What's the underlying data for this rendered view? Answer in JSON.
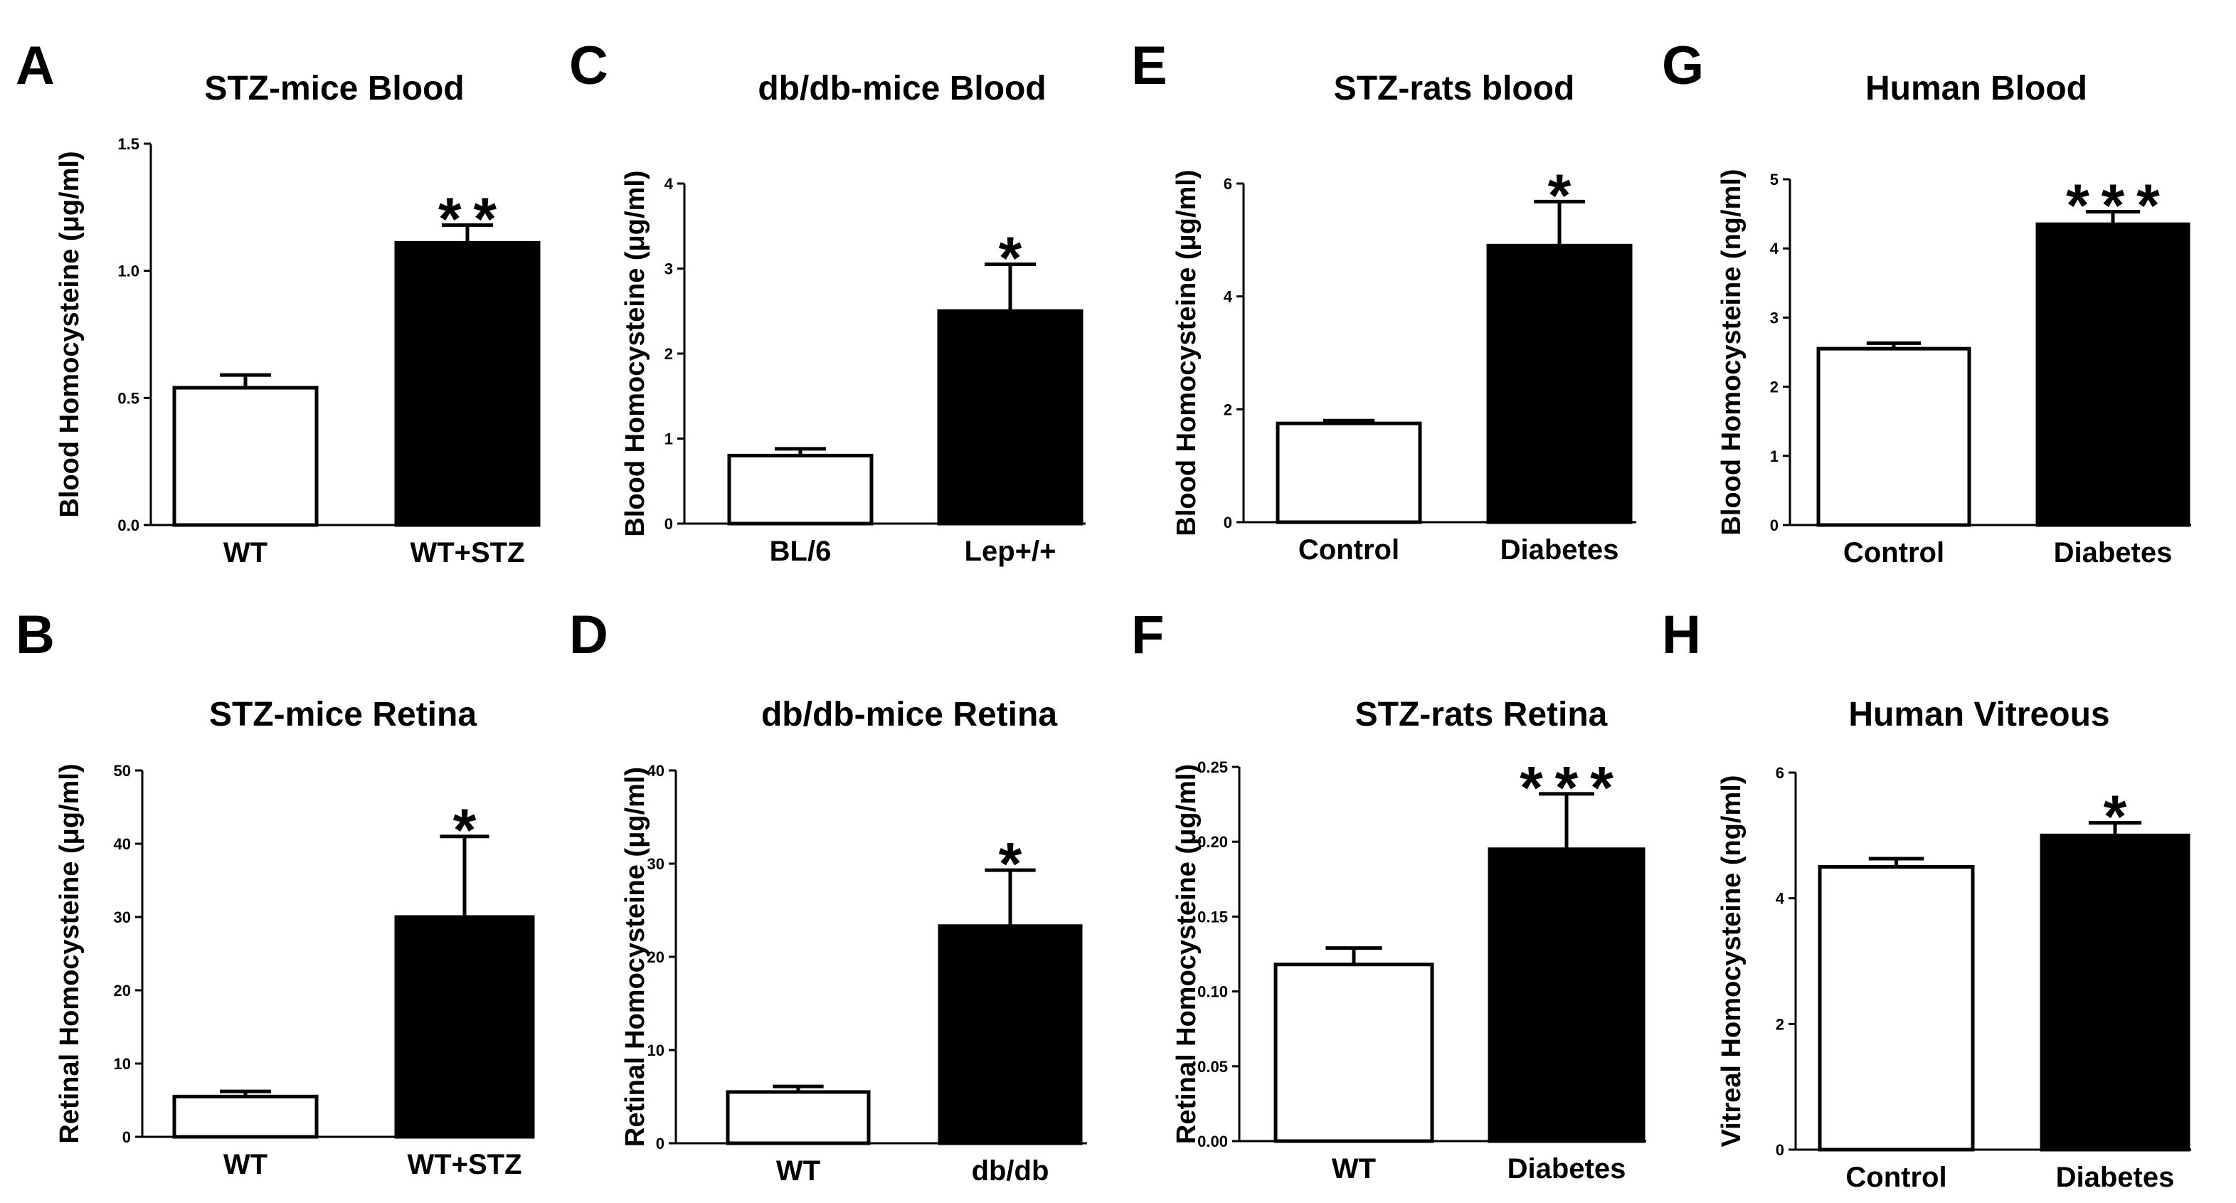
{
  "chart_data": [
    {
      "id": "A",
      "type": "bar",
      "panel_label": "A",
      "title": "STZ-mice Blood",
      "ylabel": "Blood Homocysteine (μg/ml)",
      "xlabel": "",
      "ylim": [
        0,
        1.5
      ],
      "yticks": [
        "0.0",
        "0.5",
        "1.0",
        "1.5"
      ],
      "categories": [
        "WT",
        "WT+STZ"
      ],
      "values": [
        0.54,
        1.11
      ],
      "errors": [
        0.05,
        0.07
      ],
      "bar_colors": [
        "#ffffff",
        "#000000"
      ],
      "significance": [
        "",
        "**"
      ]
    },
    {
      "id": "B",
      "type": "bar",
      "panel_label": "B",
      "title": "STZ-mice Retina",
      "ylabel": "Retinal Homocysteine (μg/ml)",
      "xlabel": "",
      "ylim": [
        0,
        50
      ],
      "yticks": [
        "0",
        "10",
        "20",
        "30",
        "40",
        "50"
      ],
      "categories": [
        "WT",
        "WT+STZ"
      ],
      "values": [
        5.5,
        30
      ],
      "errors": [
        0.7,
        11
      ],
      "bar_colors": [
        "#ffffff",
        "#000000"
      ],
      "significance": [
        "",
        "*"
      ]
    },
    {
      "id": "C",
      "type": "bar",
      "panel_label": "C",
      "title": "db/db-mice Blood",
      "ylabel": "Blood Homocysteine (μg/ml)",
      "xlabel": "",
      "ylim": [
        0,
        4
      ],
      "yticks": [
        "0",
        "1",
        "2",
        "3",
        "4"
      ],
      "categories": [
        "BL/6",
        "Lep+/+"
      ],
      "values": [
        0.8,
        2.5
      ],
      "errors": [
        0.08,
        0.55
      ],
      "bar_colors": [
        "#ffffff",
        "#000000"
      ],
      "significance": [
        "",
        "*"
      ]
    },
    {
      "id": "D",
      "type": "bar",
      "panel_label": "D",
      "title": "db/db-mice Retina",
      "ylabel": "Retinal Homocysteine (μg/ml)",
      "xlabel": "",
      "ylim": [
        0,
        40
      ],
      "yticks": [
        "0",
        "10",
        "20",
        "30",
        "40"
      ],
      "categories": [
        "WT",
        "db/db"
      ],
      "values": [
        5.5,
        23.3
      ],
      "errors": [
        0.6,
        6
      ],
      "bar_colors": [
        "#ffffff",
        "#000000"
      ],
      "significance": [
        "",
        "*"
      ]
    },
    {
      "id": "E",
      "type": "bar",
      "panel_label": "E",
      "title": "STZ-rats blood",
      "ylabel": "Blood Homocysteine (μg/ml)",
      "xlabel": "",
      "ylim": [
        0,
        6
      ],
      "yticks": [
        "0",
        "2",
        "4",
        "6"
      ],
      "categories": [
        "Control",
        "Diabetes"
      ],
      "values": [
        1.75,
        4.9
      ],
      "errors": [
        0.05,
        0.78
      ],
      "bar_colors": [
        "#ffffff",
        "#000000"
      ],
      "significance": [
        "",
        "*"
      ]
    },
    {
      "id": "F",
      "type": "bar",
      "panel_label": "F",
      "title": "STZ-rats Retina",
      "ylabel": "Retinal Homocysteine (μg/ml)",
      "xlabel": "",
      "ylim": [
        0,
        0.25
      ],
      "yticks": [
        "0.00",
        "0.05",
        "0.10",
        "0.15",
        "0.20",
        "0.25"
      ],
      "categories": [
        "WT",
        "Diabetes"
      ],
      "values": [
        0.118,
        0.195
      ],
      "errors": [
        0.011,
        0.037
      ],
      "bar_colors": [
        "#ffffff",
        "#000000"
      ],
      "significance": [
        "",
        "***"
      ]
    },
    {
      "id": "G",
      "type": "bar",
      "panel_label": "G",
      "title": "Human Blood",
      "ylabel": "Blood Homocysteine (ng/ml)",
      "xlabel": "",
      "ylim": [
        0,
        5
      ],
      "yticks": [
        "0",
        "1",
        "2",
        "3",
        "4",
        "5"
      ],
      "categories": [
        "Control",
        "Diabetes"
      ],
      "values": [
        2.55,
        4.35
      ],
      "errors": [
        0.08,
        0.18
      ],
      "bar_colors": [
        "#ffffff",
        "#000000"
      ],
      "significance": [
        "",
        "***"
      ]
    },
    {
      "id": "H",
      "type": "bar",
      "panel_label": "H",
      "title": "Human Vitreous",
      "ylabel": "Vitreal Homocysteine (ng/ml)",
      "xlabel": "",
      "ylim": [
        0,
        6
      ],
      "yticks": [
        "0",
        "2",
        "4",
        "6"
      ],
      "categories": [
        "Control",
        "Diabetes"
      ],
      "values": [
        4.5,
        5.0
      ],
      "errors": [
        0.13,
        0.2
      ],
      "bar_colors": [
        "#ffffff",
        "#000000"
      ],
      "significance": [
        "",
        "*"
      ]
    }
  ]
}
